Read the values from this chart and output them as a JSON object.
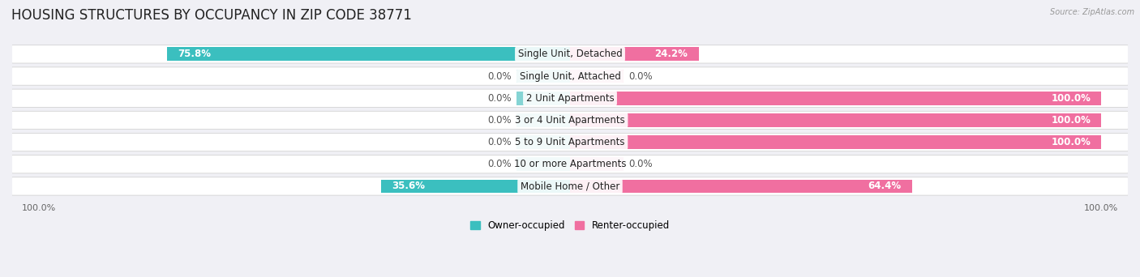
{
  "title": "HOUSING STRUCTURES BY OCCUPANCY IN ZIP CODE 38771",
  "source": "Source: ZipAtlas.com",
  "categories": [
    "Single Unit, Detached",
    "Single Unit, Attached",
    "2 Unit Apartments",
    "3 or 4 Unit Apartments",
    "5 to 9 Unit Apartments",
    "10 or more Apartments",
    "Mobile Home / Other"
  ],
  "owner_pct": [
    75.8,
    0.0,
    0.0,
    0.0,
    0.0,
    0.0,
    35.6
  ],
  "renter_pct": [
    24.2,
    0.0,
    100.0,
    100.0,
    100.0,
    0.0,
    64.4
  ],
  "owner_color": "#3bbfbf",
  "renter_color": "#f06fa0",
  "owner_color_stub": "#85d4d4",
  "renter_color_stub": "#f5aac5",
  "owner_label": "Owner-occupied",
  "renter_label": "Renter-occupied",
  "background_color": "#f0f0f5",
  "row_bg_color": "#ffffff",
  "title_fontsize": 12,
  "label_fontsize": 8.5,
  "pct_fontsize": 8.5,
  "axis_label_fontsize": 8,
  "figsize": [
    14.06,
    3.42
  ],
  "dpi": 100,
  "stub_size": 10,
  "xlim": 105
}
